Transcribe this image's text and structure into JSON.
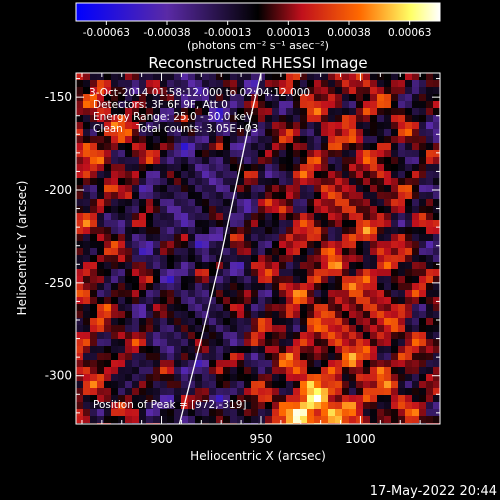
{
  "colorbar": {
    "ticks": [
      "-0.00063",
      "-0.00038",
      "-0.00013",
      "0.00013",
      "0.00038",
      "0.00063"
    ],
    "units": "(photons cm⁻² s⁻¹ asec⁻²)",
    "colors": [
      "#0000ff",
      "#5a2aa6",
      "#000000",
      "#c0101c",
      "#ff6a00",
      "#ffff66",
      "#ffffff"
    ]
  },
  "chart_data": {
    "type": "heatmap",
    "title": "Reconstructed RHESSI Image",
    "xlabel": "Heliocentric X (arcsec)",
    "ylabel": "Heliocentric Y (arcsec)",
    "xlim": [
      857,
      1040
    ],
    "ylim": [
      -326,
      -137
    ],
    "xticks": [
      "900",
      "950",
      "1000"
    ],
    "xtick_values": [
      900,
      950,
      1000
    ],
    "yticks": [
      "-150",
      "-200",
      "-250",
      "-300"
    ],
    "ytick_values": [
      -150,
      -200,
      -250,
      -300
    ],
    "value_range": [
      -0.00063,
      0.00063
    ],
    "peak": [
      972,
      -319
    ],
    "limb_curve": [
      [
        909,
        -326
      ],
      [
        920,
        -280
      ],
      [
        930,
        -235
      ],
      [
        938,
        -195
      ],
      [
        945,
        -160
      ],
      [
        950,
        -137
      ]
    ],
    "annotations": [
      "3-Oct-2014 01:58:12.000 to 02:04:12.000",
      "Detectors: 3F 6F 9F, Att 0",
      "Energy Range: 25.0 - 50.0 keV",
      "Clean    Total counts: 3.05E+03"
    ],
    "peak_label": "Position of Peak = [972,-319]"
  },
  "timestamp": "17-May-2022 20:44"
}
